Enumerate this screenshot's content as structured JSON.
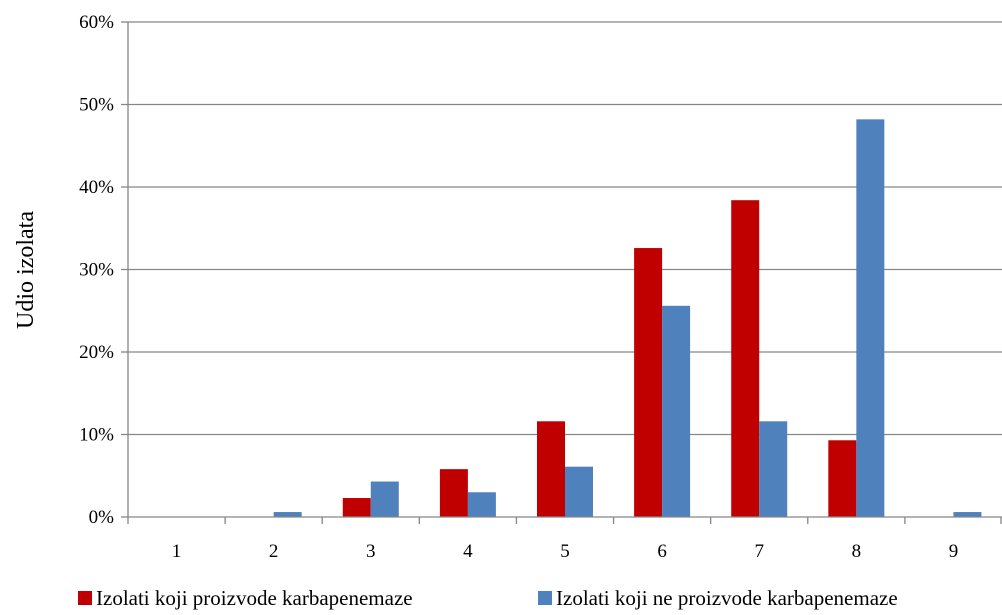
{
  "chart_data": {
    "type": "bar",
    "title": "",
    "xlabel": "",
    "ylabel": "Udio izolata",
    "ylim": [
      0,
      60
    ],
    "yticks": [
      "0%",
      "10%",
      "20%",
      "30%",
      "40%",
      "50%",
      "60%"
    ],
    "grid": true,
    "legend_position": "bottom",
    "categories": [
      "1",
      "2",
      "3",
      "4",
      "5",
      "6",
      "7",
      "8",
      "9"
    ],
    "series": [
      {
        "name": "Izolati koji proizvode karbapenemaze",
        "color": "#C00000",
        "values": [
          0,
          0,
          2.3,
          5.8,
          11.6,
          32.6,
          38.4,
          9.3,
          0
        ]
      },
      {
        "name": "Izolati koji ne proizvode karbapenemaze",
        "color": "#4F81BD",
        "values": [
          0,
          0.6,
          4.3,
          3.0,
          6.1,
          25.6,
          11.6,
          48.2,
          0.6
        ]
      }
    ]
  }
}
